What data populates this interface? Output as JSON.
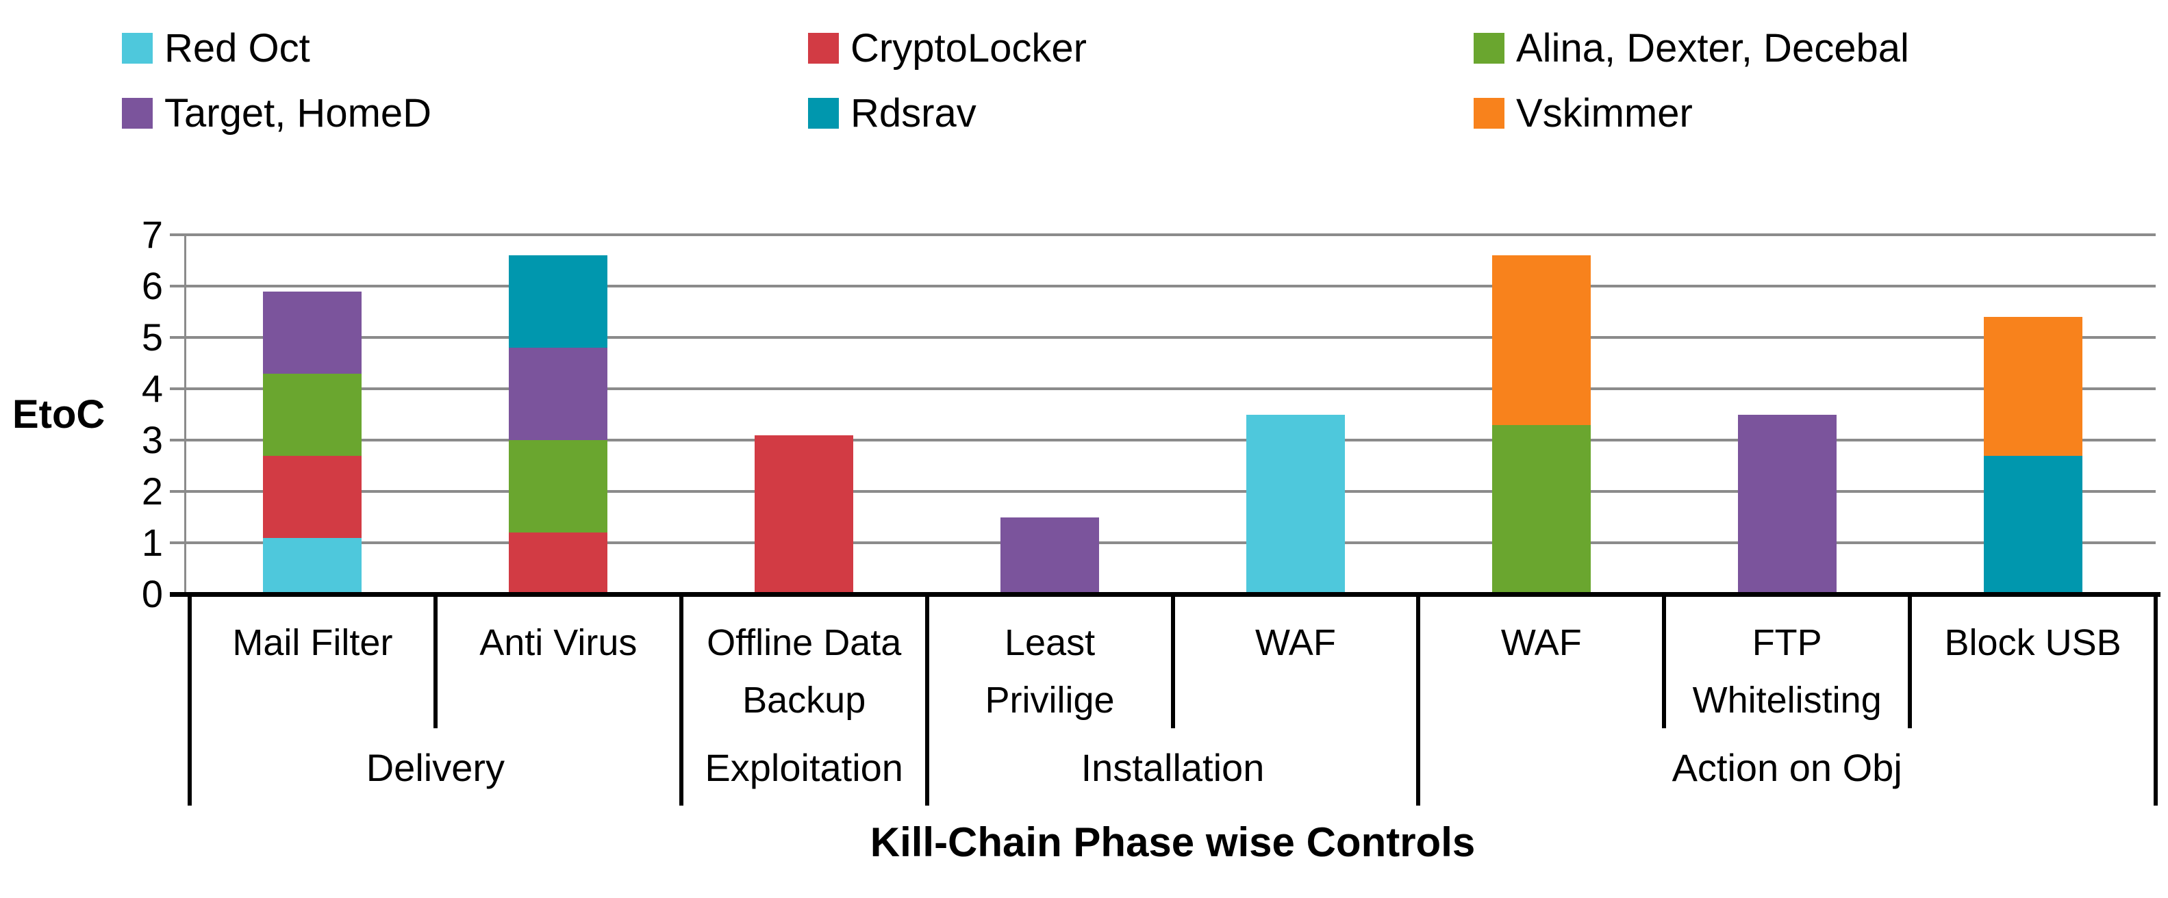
{
  "chart_data": {
    "type": "bar",
    "stacked": true,
    "title": "",
    "xlabel": "Kill-Chain Phase wise Controls",
    "ylabel": "EtoC",
    "ylim": [
      0,
      7
    ],
    "yticks": [
      0,
      1,
      2,
      3,
      4,
      5,
      6,
      7
    ],
    "grid": true,
    "grid_color": "#8b8b8b",
    "legend_position": "top",
    "series": [
      {
        "name": "Red Oct",
        "color": "#4ec8dc"
      },
      {
        "name": "CryptoLocker",
        "color": "#d23b44"
      },
      {
        "name": "Alina, Dexter, Decebal",
        "color": "#6aa62f"
      },
      {
        "name": "Target, HomeD",
        "color": "#7b549c"
      },
      {
        "name": "Rdsrav",
        "color": "#0097ae"
      },
      {
        "name": "Vskimmer",
        "color": "#f8821c"
      }
    ],
    "categories": [
      {
        "label": "Mail Filter",
        "lines": [
          "Mail Filter"
        ],
        "group": "Delivery",
        "stack": [
          {
            "series": "Red Oct",
            "value": 1.1
          },
          {
            "series": "CryptoLocker",
            "value": 1.6
          },
          {
            "series": "Alina, Dexter, Decebal",
            "value": 1.6
          },
          {
            "series": "Target, HomeD",
            "value": 1.6
          }
        ]
      },
      {
        "label": "Anti Virus",
        "lines": [
          "Anti Virus"
        ],
        "group": "Delivery",
        "stack": [
          {
            "series": "CryptoLocker",
            "value": 1.2
          },
          {
            "series": "Alina, Dexter, Decebal",
            "value": 1.8
          },
          {
            "series": "Target, HomeD",
            "value": 1.8
          },
          {
            "series": "Rdsrav",
            "value": 1.8
          }
        ]
      },
      {
        "label": "Offline Data Backup",
        "lines": [
          "Offline Data",
          "Backup"
        ],
        "group": "Exploitation",
        "stack": [
          {
            "series": "CryptoLocker",
            "value": 3.1
          }
        ]
      },
      {
        "label": "Least Privilige",
        "lines": [
          "Least",
          "Privilige"
        ],
        "group": "Installation",
        "stack": [
          {
            "series": "Target, HomeD",
            "value": 1.5
          }
        ]
      },
      {
        "label": "WAF",
        "lines": [
          "WAF"
        ],
        "group": "Installation",
        "stack": [
          {
            "series": "Red Oct",
            "value": 3.5
          }
        ]
      },
      {
        "label": "WAF",
        "lines": [
          "WAF"
        ],
        "group": "Action on Obj",
        "stack": [
          {
            "series": "Alina, Dexter, Decebal",
            "value": 3.3
          },
          {
            "series": "Vskimmer",
            "value": 3.3
          }
        ]
      },
      {
        "label": "FTP Whitelisting",
        "lines": [
          "FTP",
          "Whitelisting"
        ],
        "group": "Action on Obj",
        "stack": [
          {
            "series": "Target, HomeD",
            "value": 3.5
          }
        ]
      },
      {
        "label": "Block USB",
        "lines": [
          "Block USB"
        ],
        "group": "Action on Obj",
        "stack": [
          {
            "series": "Rdsrav",
            "value": 2.7
          },
          {
            "series": "Vskimmer",
            "value": 2.7
          }
        ]
      }
    ],
    "groups": [
      {
        "label": "Delivery",
        "start": 0,
        "span": 2
      },
      {
        "label": "Exploitation",
        "start": 2,
        "span": 1
      },
      {
        "label": "Installation",
        "start": 3,
        "span": 2
      },
      {
        "label": "Action on Obj",
        "start": 5,
        "span": 3
      }
    ]
  }
}
